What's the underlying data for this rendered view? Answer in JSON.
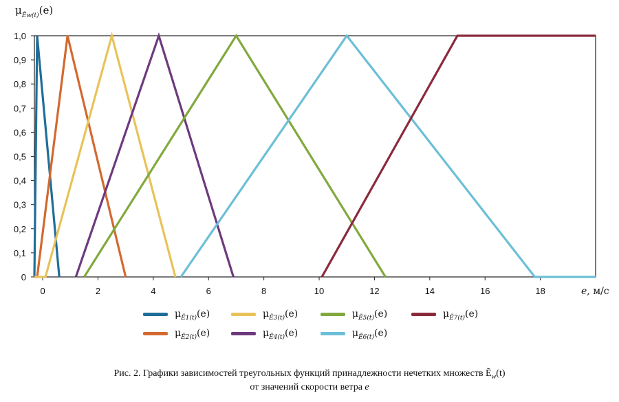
{
  "figure": {
    "ylabel_main": "μ",
    "ylabel_sub": "Ẽw(t)",
    "ylabel_arg": "(e)",
    "xlabel_var": "e,",
    "xlabel_unit": " м/с",
    "caption_line1": "Рис. 2. Графики зависимостей треугольных функций принадлежности нечетких множеств Ẽ",
    "caption_line1_sub": "w",
    "caption_line1_end": "(t)",
    "caption_line2": "от значений скорости ветра ",
    "caption_line2_var": "e"
  },
  "legend": [
    {
      "label_main": "μ",
      "label_sub": "Ẽ1(t)",
      "label_arg": "(e)",
      "color": "#1f6e99"
    },
    {
      "label_main": "μ",
      "label_sub": "Ẽ2(t)",
      "label_arg": "(e)",
      "color": "#d3692f"
    },
    {
      "label_main": "μ",
      "label_sub": "Ẽ3(t)",
      "label_arg": "(e)",
      "color": "#e8c35a"
    },
    {
      "label_main": "μ",
      "label_sub": "Ẽ4(t)",
      "label_arg": "(e)",
      "color": "#6e3a7e"
    },
    {
      "label_main": "μ",
      "label_sub": "Ẽ5(t)",
      "label_arg": "(e)",
      "color": "#82a93e"
    },
    {
      "label_main": "μ",
      "label_sub": "Ẽ6(t)",
      "label_arg": "(e)",
      "color": "#6cbfd6"
    },
    {
      "label_main": "μ",
      "label_sub": "Ẽ7(t)",
      "label_arg": "(e)",
      "color": "#8b2a3c"
    }
  ],
  "chart_data": {
    "type": "line",
    "xlim": [
      -0.3,
      20
    ],
    "ylim": [
      0,
      1.0
    ],
    "x_ticks": [
      0,
      2,
      4,
      6,
      8,
      10,
      12,
      14,
      16,
      18
    ],
    "x_tick_labels": [
      "0",
      "2",
      "4",
      "6",
      "8",
      "10",
      "12",
      "14",
      "16",
      "18"
    ],
    "y_ticks": [
      0,
      0.1,
      0.2,
      0.3,
      0.4,
      0.5,
      0.6,
      0.7,
      0.8,
      0.9,
      1.0
    ],
    "y_tick_labels": [
      "0",
      "0,1",
      "0,2",
      "0,3",
      "0,4",
      "0,5",
      "0,6",
      "0,7",
      "0,8",
      "0,9",
      "1,0"
    ],
    "grid": false,
    "series": [
      {
        "name": "μẼ1(t)(e)",
        "color": "#1f6e99",
        "x": [
          -0.3,
          -0.2,
          0.6
        ],
        "y": [
          0,
          1,
          0
        ]
      },
      {
        "name": "μẼ2(t)(e)",
        "color": "#d3692f",
        "x": [
          -0.3,
          -0.2,
          0.9,
          3.0
        ],
        "y": [
          0,
          0,
          1,
          0
        ]
      },
      {
        "name": "μẼ3(t)(e)",
        "color": "#e8c35a",
        "x": [
          -0.3,
          0.1,
          2.5,
          4.8
        ],
        "y": [
          0,
          0,
          1,
          0
        ]
      },
      {
        "name": "μẼ4(t)(e)",
        "color": "#6e3a7e",
        "x": [
          1.2,
          4.2,
          6.9
        ],
        "y": [
          0,
          1,
          0
        ]
      },
      {
        "name": "μẼ5(t)(e)",
        "color": "#82a93e",
        "x": [
          1.5,
          7.0,
          12.4
        ],
        "y": [
          0,
          1,
          0
        ]
      },
      {
        "name": "μẼ6(t)(e)",
        "color": "#6cbfd6",
        "x": [
          5.0,
          11.0,
          17.8,
          20.0
        ],
        "y": [
          0,
          1,
          0,
          0
        ]
      },
      {
        "name": "μẼ7(t)(e)",
        "color": "#8b2a3c",
        "x": [
          10.1,
          15.0,
          20.0
        ],
        "y": [
          0,
          1,
          1
        ]
      }
    ]
  }
}
